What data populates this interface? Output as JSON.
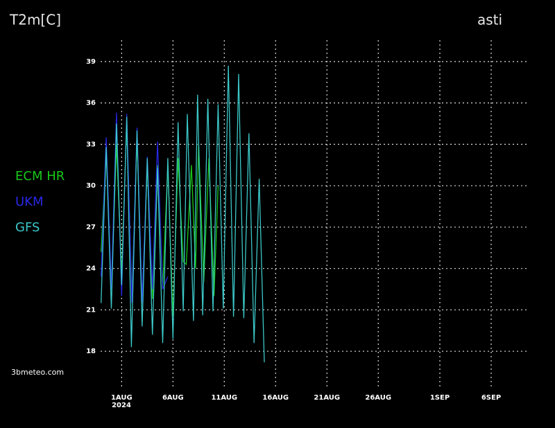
{
  "chart_data": {
    "type": "line",
    "title": "T2m[C]",
    "location": "asti",
    "source": "3bmeteo.com",
    "year_label": "2024",
    "xlim": [
      -2.05,
      39.65
    ],
    "ylim": [
      15.35,
      40.55
    ],
    "xticks": [
      {
        "value": 0,
        "label": "1AUG"
      },
      {
        "value": 5,
        "label": "6AUG"
      },
      {
        "value": 10,
        "label": "11AUG"
      },
      {
        "value": 15,
        "label": "16AUG"
      },
      {
        "value": 20,
        "label": "21AUG"
      },
      {
        "value": 25,
        "label": "26AUG"
      },
      {
        "value": 31,
        "label": "1SEP"
      },
      {
        "value": 36,
        "label": "6SEP"
      }
    ],
    "yticks": [
      18,
      21,
      24,
      27,
      30,
      33,
      36,
      39
    ],
    "grid": true,
    "series": [
      {
        "name": "ECM  HR",
        "color": "#19c819",
        "x": [
          -2.0,
          -1.5,
          -1.0,
          -0.5,
          0.0,
          0.5,
          1.0,
          1.5,
          2.0,
          2.5,
          3.0,
          3.5,
          4.0,
          4.5,
          5.0,
          5.5,
          6.0,
          6.3,
          6.8,
          7.2,
          7.5,
          8.0,
          8.5,
          9.0,
          9.4
        ],
        "values": [
          25.2,
          32.5,
          22.5,
          33.0,
          23.5,
          34.5,
          22.0,
          33.5,
          21.5,
          31.5,
          21.8,
          31.5,
          22.5,
          31.5,
          20.5,
          32.0,
          24.5,
          24.3,
          31.5,
          24.0,
          33.0,
          23.0,
          32.0,
          22.0,
          30.0
        ]
      },
      {
        "name": "UKM",
        "color": "#2828e6",
        "x": [
          -2.0,
          -1.5,
          -1.0,
          -0.5,
          0.0,
          0.5,
          1.0,
          1.5,
          2.0,
          2.5,
          3.0,
          3.5,
          4.0,
          4.5
        ],
        "values": [
          23.4,
          33.5,
          22.5,
          35.3,
          22.0,
          35.2,
          21.5,
          34.2,
          21.5,
          32.1,
          22.5,
          33.2,
          22.5,
          23.4
        ]
      },
      {
        "name": "GFS",
        "color": "#3cc8c8",
        "x": [
          -2.0,
          -1.5,
          -1.0,
          -0.5,
          0.0,
          0.5,
          0.95,
          1.5,
          2.0,
          2.5,
          3.0,
          3.5,
          4.0,
          4.5,
          5.0,
          5.5,
          6.0,
          6.4,
          7.0,
          7.4,
          7.9,
          8.4,
          8.9,
          9.4,
          9.9,
          10.4,
          10.9,
          11.4,
          11.9,
          12.4,
          12.9,
          13.4,
          13.9
        ],
        "values": [
          21.5,
          32.8,
          21.1,
          34.5,
          22.8,
          35.0,
          18.3,
          34.0,
          19.8,
          32.0,
          19.2,
          31.3,
          18.6,
          32.0,
          18.9,
          34.6,
          20.9,
          35.2,
          20.2,
          36.6,
          20.6,
          36.3,
          20.9,
          35.9,
          21.1,
          38.7,
          20.5,
          38.1,
          20.4,
          33.8,
          18.6,
          30.5,
          17.2
        ]
      }
    ]
  }
}
